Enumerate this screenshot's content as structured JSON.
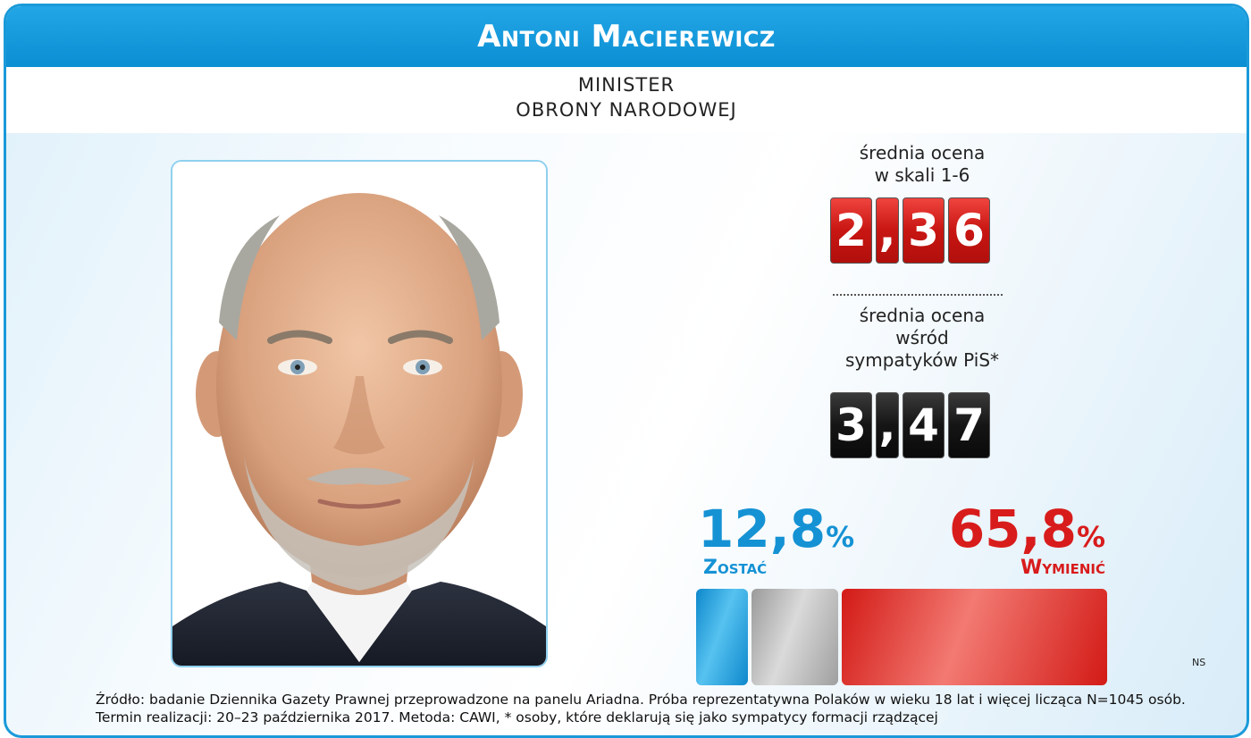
{
  "header": {
    "title": "Antoni Macierewicz"
  },
  "subtitle": {
    "line1": "MINISTER",
    "line2": "OBRONY NARODOWEJ"
  },
  "stats": {
    "overall": {
      "label_lines": [
        "średnia ocena",
        "w skali 1-6"
      ],
      "digits": [
        "2",
        ",",
        "3",
        "6"
      ],
      "value": 2.36
    },
    "pis": {
      "label_lines": [
        "średnia ocena",
        "wśród",
        "sympatyków PiS*"
      ],
      "digits": [
        "3",
        ",",
        "4",
        "7"
      ],
      "value": 3.47
    }
  },
  "chart_data": {
    "type": "bar",
    "categories": [
      "Zostać",
      "",
      "Wymienić"
    ],
    "values": [
      12.8,
      21.4,
      65.8
    ],
    "unit": "%",
    "labels": [
      {
        "value": "12,8",
        "unit": "%",
        "name": "Zostać"
      },
      {
        "value": "65,8",
        "unit": "%",
        "name": "Wymienić"
      }
    ],
    "colors": [
      "#1592d4",
      "#b5b5b5",
      "#d81c1c"
    ]
  },
  "ns_label": "NS",
  "footnote": {
    "line1": "Źródło: badanie Dziennika Gazety Prawnej przeprowadzone na panelu Ariadna. Próba reprezentatywna Polaków w wieku 18 lat i więcej licząca N=1045 osób.",
    "line2": "Termin realizacji: 20–23 października 2017. Metoda: CAWI, * osoby, które deklarują się jako sympatycy formacji rządzącej"
  },
  "colors": {
    "brand_blue": "#1a9ad9",
    "red": "#d81c1c",
    "blue": "#1592d4"
  }
}
